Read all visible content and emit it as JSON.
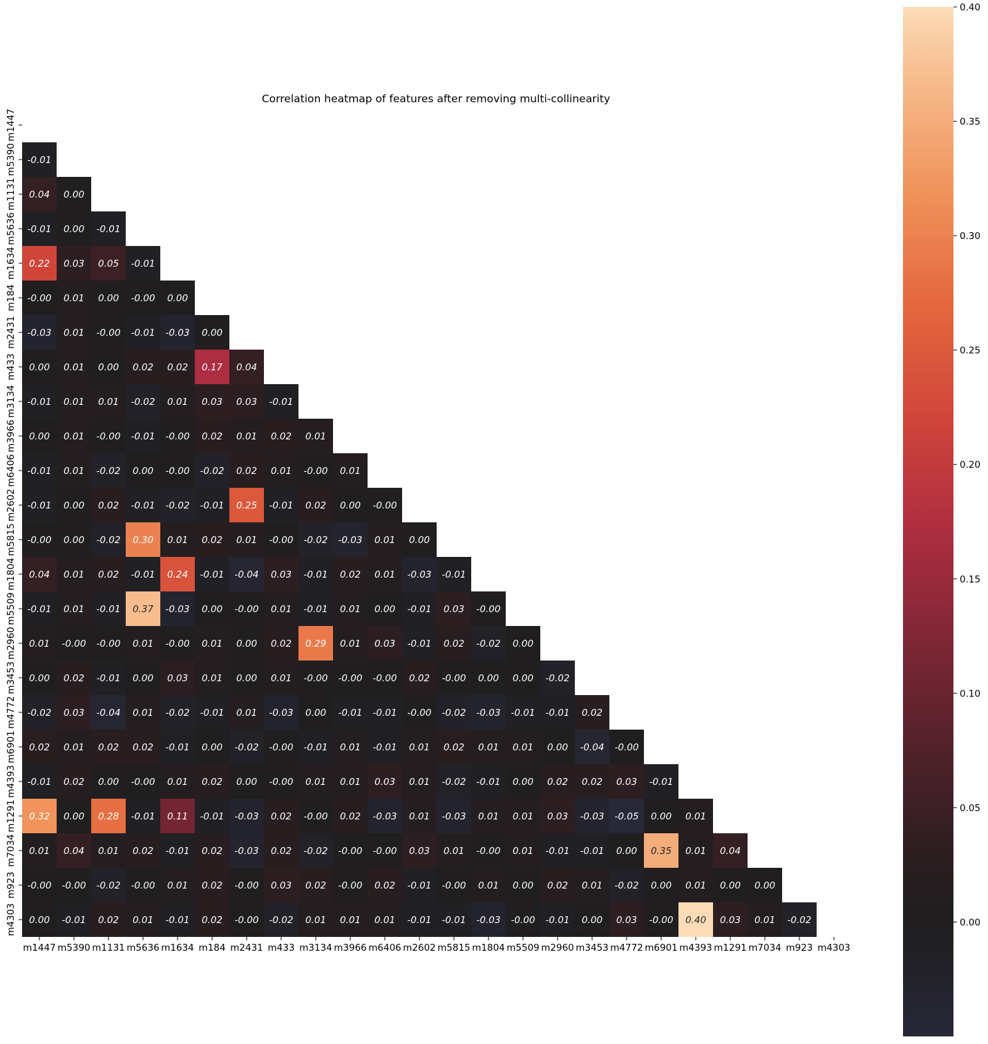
{
  "chart_data": {
    "type": "heatmap",
    "title": "Correlation heatmap of features after removing multi-collinearity",
    "xlabel": "",
    "ylabel": "",
    "mask": "upper-triangle-including-diagonal",
    "labels": [
      "m1447",
      "m5390",
      "m1131",
      "m5636",
      "m1634",
      "m184",
      "m2431",
      "m433",
      "m3134",
      "m3966",
      "m6406",
      "m2602",
      "m5815",
      "m1804",
      "m5509",
      "m2960",
      "m3453",
      "m4772",
      "m6901",
      "m4393",
      "m1291",
      "m7034",
      "m923",
      "m4303"
    ],
    "rows": [
      [],
      [
        "-0.01"
      ],
      [
        "0.04",
        "0.00"
      ],
      [
        "-0.01",
        "0.00",
        "-0.01"
      ],
      [
        "0.22",
        "0.03",
        "0.05",
        "-0.01"
      ],
      [
        "-0.00",
        "0.01",
        "0.00",
        "-0.00",
        "0.00"
      ],
      [
        "-0.03",
        "0.01",
        "-0.00",
        "-0.01",
        "-0.03",
        "0.00"
      ],
      [
        "0.00",
        "0.01",
        "0.00",
        "0.02",
        "0.02",
        "0.17",
        "0.04"
      ],
      [
        "-0.01",
        "0.01",
        "0.01",
        "-0.02",
        "0.01",
        "0.03",
        "0.03",
        "-0.01"
      ],
      [
        "0.00",
        "0.01",
        "-0.00",
        "-0.01",
        "-0.00",
        "0.02",
        "0.01",
        "0.02",
        "0.01"
      ],
      [
        "-0.01",
        "0.01",
        "-0.02",
        "0.00",
        "-0.00",
        "-0.02",
        "0.02",
        "0.01",
        "-0.00",
        "0.01"
      ],
      [
        "-0.01",
        "0.00",
        "0.02",
        "-0.01",
        "-0.02",
        "-0.01",
        "0.25",
        "-0.01",
        "0.02",
        "0.00",
        "-0.00"
      ],
      [
        "-0.00",
        "0.00",
        "-0.02",
        "0.30",
        "0.01",
        "0.02",
        "0.01",
        "-0.00",
        "-0.02",
        "-0.03",
        "0.01",
        "0.00"
      ],
      [
        "0.04",
        "0.01",
        "0.02",
        "-0.01",
        "0.24",
        "-0.01",
        "-0.04",
        "0.03",
        "-0.01",
        "0.02",
        "0.01",
        "-0.03",
        "-0.01"
      ],
      [
        "-0.01",
        "0.01",
        "-0.01",
        "0.37",
        "-0.03",
        "0.00",
        "-0.00",
        "0.01",
        "-0.01",
        "0.01",
        "0.00",
        "-0.01",
        "0.03",
        "-0.00"
      ],
      [
        "0.01",
        "-0.00",
        "-0.00",
        "0.01",
        "-0.00",
        "0.01",
        "0.00",
        "0.02",
        "0.29",
        "0.01",
        "0.03",
        "-0.01",
        "0.02",
        "-0.02",
        "0.00"
      ],
      [
        "0.00",
        "0.02",
        "-0.01",
        "0.00",
        "0.03",
        "0.01",
        "0.00",
        "0.01",
        "-0.00",
        "-0.00",
        "-0.00",
        "0.02",
        "-0.00",
        "0.00",
        "0.00",
        "-0.02"
      ],
      [
        "-0.02",
        "0.03",
        "-0.04",
        "0.01",
        "-0.02",
        "-0.01",
        "0.01",
        "-0.03",
        "0.00",
        "-0.01",
        "-0.01",
        "-0.00",
        "-0.02",
        "-0.03",
        "-0.01",
        "-0.01",
        "0.02"
      ],
      [
        "0.02",
        "0.01",
        "0.02",
        "0.02",
        "-0.01",
        "0.00",
        "-0.02",
        "-0.00",
        "-0.01",
        "0.01",
        "-0.01",
        "0.01",
        "0.02",
        "0.01",
        "0.01",
        "0.00",
        "-0.04",
        "-0.00"
      ],
      [
        "-0.01",
        "0.02",
        "0.00",
        "-0.00",
        "0.01",
        "0.02",
        "0.00",
        "-0.00",
        "0.01",
        "0.01",
        "0.03",
        "0.01",
        "-0.02",
        "-0.01",
        "0.00",
        "0.02",
        "0.02",
        "0.03",
        "-0.01"
      ],
      [
        "0.32",
        "0.00",
        "0.28",
        "-0.01",
        "0.11",
        "-0.01",
        "-0.03",
        "0.02",
        "-0.00",
        "0.02",
        "-0.03",
        "0.01",
        "-0.03",
        "0.01",
        "0.01",
        "0.03",
        "-0.03",
        "-0.05",
        "0.00",
        "0.01"
      ],
      [
        "0.01",
        "0.04",
        "0.01",
        "0.02",
        "-0.01",
        "0.02",
        "-0.03",
        "0.02",
        "-0.02",
        "-0.00",
        "-0.00",
        "0.03",
        "0.01",
        "-0.00",
        "0.01",
        "-0.01",
        "-0.01",
        "0.00",
        "0.35",
        "0.01",
        "0.04"
      ],
      [
        "-0.00",
        "-0.00",
        "-0.02",
        "-0.00",
        "0.01",
        "0.02",
        "-0.00",
        "0.03",
        "0.02",
        "-0.00",
        "0.02",
        "-0.01",
        "-0.00",
        "0.01",
        "0.00",
        "0.02",
        "0.01",
        "-0.02",
        "0.00",
        "0.01",
        "0.00",
        "0.00"
      ],
      [
        "0.00",
        "-0.01",
        "0.02",
        "0.01",
        "-0.01",
        "0.02",
        "-0.00",
        "-0.02",
        "0.01",
        "0.01",
        "0.01",
        "-0.01",
        "-0.01",
        "-0.03",
        "-0.00",
        "-0.01",
        "0.00",
        "0.03",
        "-0.00",
        "0.40",
        "0.03",
        "0.01",
        "-0.02"
      ]
    ],
    "colorbar": {
      "colormap": "icefire-like diverging, centered at 0.00",
      "vmin": -0.05,
      "vmax": 0.4,
      "tick_labels": [
        "0.00",
        "0.05",
        "0.10",
        "0.15",
        "0.20",
        "0.25",
        "0.30",
        "0.35",
        "0.40"
      ],
      "stops": [
        "#272838",
        "#201e1f",
        "#2c1e21",
        "#4d2129",
        "#7c2635",
        "#ad2d41",
        "#d0453a",
        "#e4673d",
        "#f0935c",
        "#f7bd8e",
        "#fcdcb8"
      ]
    },
    "grid": false,
    "legend": "colorbar-right"
  }
}
